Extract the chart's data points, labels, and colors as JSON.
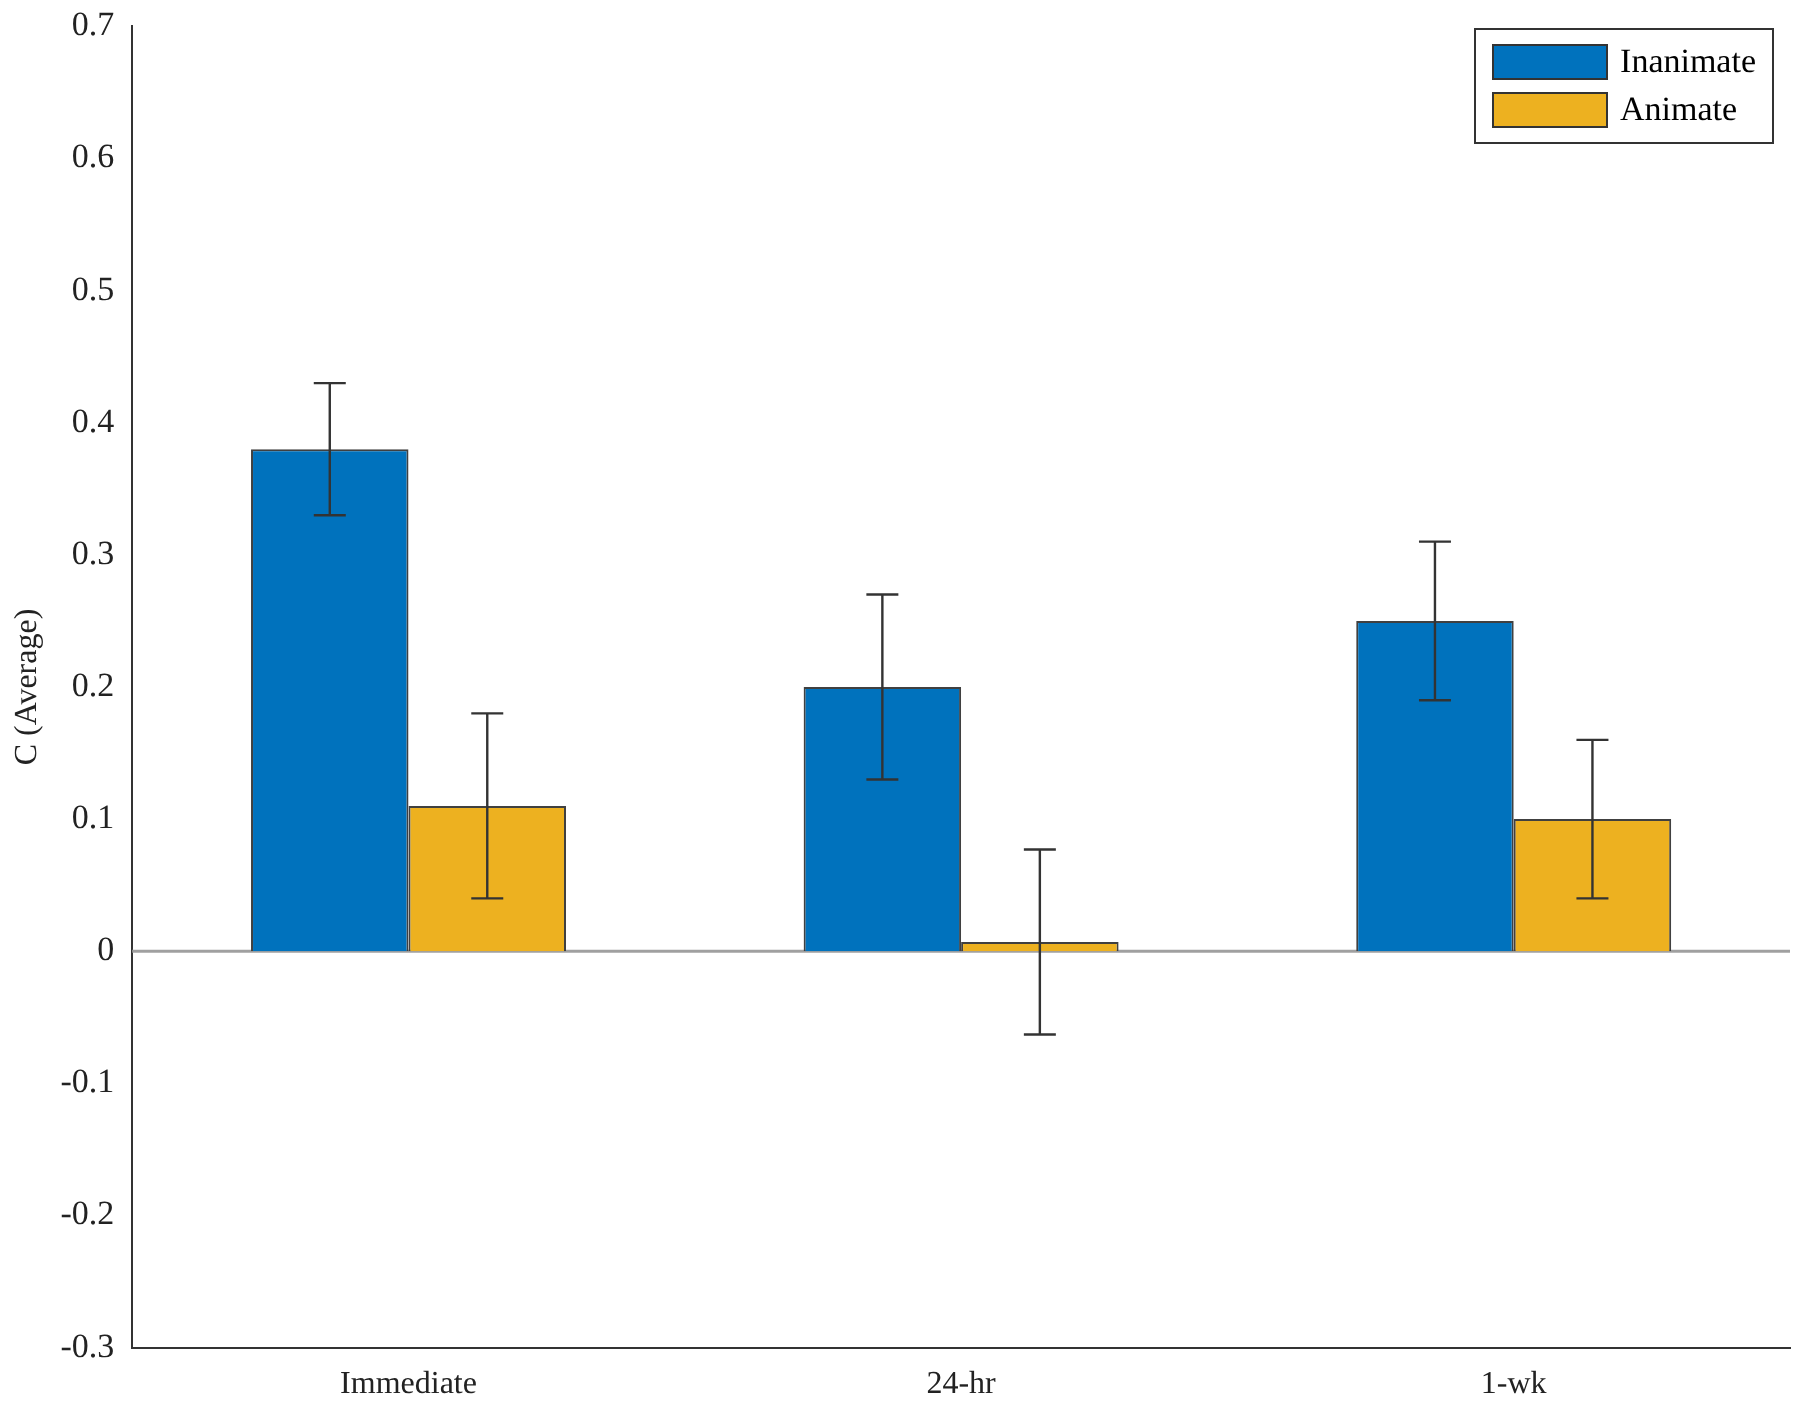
{
  "chart_data": {
    "type": "bar",
    "ylabel": "C (Average)",
    "categories": [
      "Immediate",
      "24-hr",
      "1-wk"
    ],
    "series": [
      {
        "name": "Inanimate",
        "color": "#0072bd",
        "values": [
          0.38,
          0.2,
          0.25
        ],
        "errors": [
          0.05,
          0.07,
          0.06
        ]
      },
      {
        "name": "Animate",
        "color": "#edb120",
        "values": [
          0.11,
          0.007,
          0.1
        ],
        "errors": [
          0.07,
          0.07,
          0.06
        ]
      }
    ],
    "ylim": [
      -0.3,
      0.7
    ],
    "yticks": [
      -0.3,
      -0.2,
      -0.1,
      0,
      0.1,
      0.2,
      0.3,
      0.4,
      0.5,
      0.6,
      0.7
    ],
    "ref_lines": [
      {
        "axis": "y",
        "value": 0,
        "color": "#a0a0a0"
      }
    ],
    "legend": "top right",
    "grid": false
  }
}
